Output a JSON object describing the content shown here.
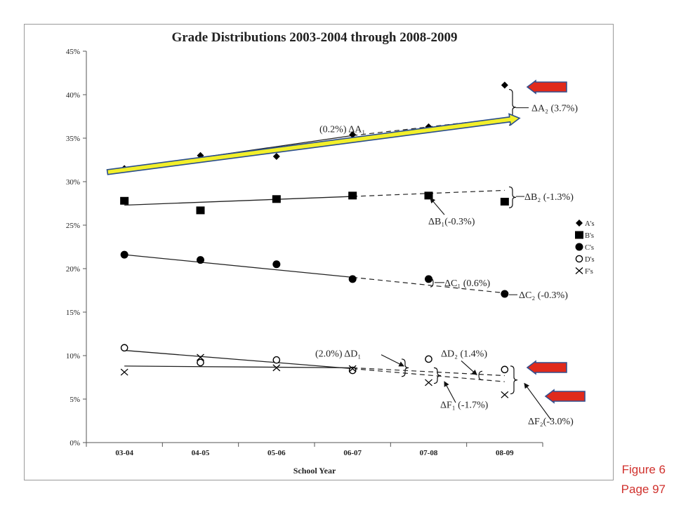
{
  "chart_data": {
    "type": "scatter",
    "title": "Grade Distributions 2003-2004 through 2008-2009",
    "xlabel": "School Year",
    "ylabel": "",
    "categories": [
      "03-04",
      "04-05",
      "05-06",
      "06-07",
      "07-08",
      "08-09"
    ],
    "ylim": [
      0,
      45
    ],
    "yticks": [
      "0%",
      "5%",
      "10%",
      "15%",
      "20%",
      "25%",
      "30%",
      "35%",
      "40%",
      "45%"
    ],
    "grid": false,
    "legend_position": "right",
    "series": [
      {
        "name": "A's",
        "marker": "diamond",
        "values": [
          31.5,
          33.0,
          32.9,
          35.4,
          36.3,
          41.1
        ],
        "trend": [
          31.5,
          35.3
        ],
        "trend_extended": [
          35.3,
          37.3
        ]
      },
      {
        "name": "B's",
        "marker": "square",
        "values": [
          27.8,
          26.7,
          28.0,
          28.4,
          28.4,
          27.7
        ],
        "trend": [
          27.3,
          28.3
        ],
        "trend_extended": [
          28.3,
          29.0
        ]
      },
      {
        "name": "C's",
        "marker": "circle",
        "values": [
          21.6,
          21.0,
          20.5,
          18.8,
          18.8,
          17.1
        ],
        "trend": [
          21.6,
          19.0
        ],
        "trend_extended": [
          19.0,
          17.2
        ]
      },
      {
        "name": "D's",
        "marker": "open-circle",
        "values": [
          10.9,
          9.2,
          9.5,
          8.3,
          9.6,
          8.4
        ],
        "trend": [
          10.6,
          8.5
        ],
        "trend_extended": [
          8.5,
          7.0
        ]
      },
      {
        "name": "F's",
        "marker": "x",
        "values": [
          8.1,
          9.8,
          8.6,
          8.5,
          6.9,
          5.5
        ],
        "trend": [
          8.8,
          8.6
        ],
        "trend_extended": [
          8.6,
          7.7
        ]
      }
    ],
    "annotations": [
      "(0.2%) ΔA₁",
      "ΔA₂ (3.7%)",
      "ΔB₂ (-1.3%)",
      "ΔB₁(-0.3%)",
      "ΔC₁ (0.6%)",
      "ΔC₂ (-0.3%)",
      "(2.0%) ΔD₁",
      "ΔD₂ (1.4%)",
      "ΔF₁ (-1.7%)",
      "ΔF₂(-3.0%)"
    ],
    "colors": {
      "series": "#000000",
      "highlight_fill": "#f2ef2a",
      "highlight_stroke": "#2a4e8c",
      "callout_fill": "#e02a1c",
      "callout_stroke": "#34508f"
    }
  },
  "figure_caption": "Figure 6",
  "page_label": "Page 97"
}
